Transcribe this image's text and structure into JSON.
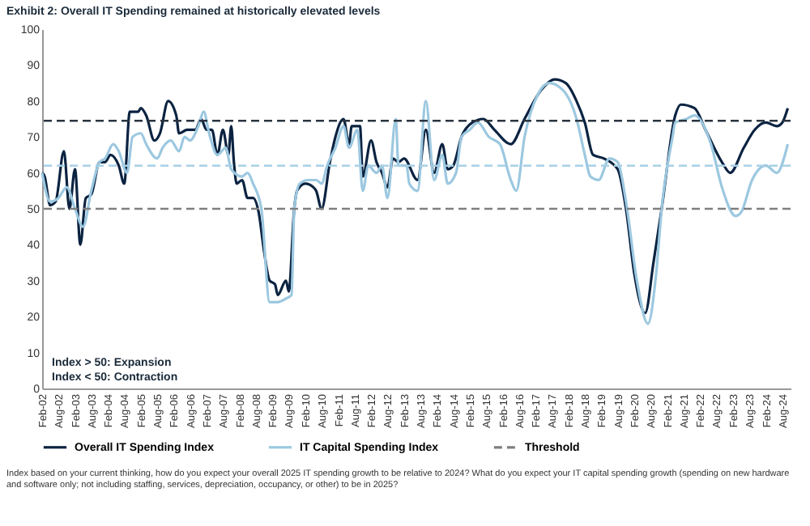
{
  "chart_data": {
    "type": "line",
    "title": "Exhibit 2: Overall IT Spending remained at historically elevated levels",
    "annotations": [
      "Index > 50: Expansion",
      "Index < 50: Contraction",
      "Index based on your current thinking, how do you expect your overall 2025 IT spending growth to be relative to 2024? What do you expect your IT capital spending growth (spending on new hardware and software only; not including staffing, services, depreciation, occupancy, or other) to be in 2025?"
    ],
    "ylim": [
      0,
      100
    ],
    "yticks": [
      0,
      10,
      20,
      30,
      40,
      50,
      60,
      70,
      80,
      90,
      100
    ],
    "xlim": [
      "2002-02",
      "2024-11"
    ],
    "xticks": [
      {
        "value": "2002-02",
        "label": "Feb-02"
      },
      {
        "value": "2002-08",
        "label": "Aug-02"
      },
      {
        "value": "2003-02",
        "label": "Feb-03"
      },
      {
        "value": "2003-08",
        "label": "Aug-03"
      },
      {
        "value": "2004-02",
        "label": "Feb-04"
      },
      {
        "value": "2004-08",
        "label": "Aug-04"
      },
      {
        "value": "2005-02",
        "label": "Feb-05"
      },
      {
        "value": "2005-08",
        "label": "Aug-05"
      },
      {
        "value": "2006-02",
        "label": "Feb-06"
      },
      {
        "value": "2006-08",
        "label": "Aug-06"
      },
      {
        "value": "2007-02",
        "label": "Feb-07"
      },
      {
        "value": "2007-08",
        "label": "Aug-07"
      },
      {
        "value": "2008-02",
        "label": "Feb-08"
      },
      {
        "value": "2008-08",
        "label": "Aug-08"
      },
      {
        "value": "2009-02",
        "label": "Feb-09"
      },
      {
        "value": "2009-08",
        "label": "Aug-09"
      },
      {
        "value": "2010-02",
        "label": "Feb-10"
      },
      {
        "value": "2010-08",
        "label": "Aug-10"
      },
      {
        "value": "2011-02",
        "label": "Feb-11"
      },
      {
        "value": "2011-08",
        "label": "Aug-11"
      },
      {
        "value": "2012-02",
        "label": "Feb-12"
      },
      {
        "value": "2012-08",
        "label": "Aug-12"
      },
      {
        "value": "2013-02",
        "label": "Feb-13"
      },
      {
        "value": "2013-08",
        "label": "Aug-13"
      },
      {
        "value": "2014-02",
        "label": "Feb-14"
      },
      {
        "value": "2014-08",
        "label": "Aug-14"
      },
      {
        "value": "2015-02",
        "label": "Feb-15"
      },
      {
        "value": "2015-08",
        "label": "Aug-15"
      },
      {
        "value": "2016-02",
        "label": "Feb-16"
      },
      {
        "value": "2016-08",
        "label": "Aug-16"
      },
      {
        "value": "2017-02",
        "label": "Feb-17"
      },
      {
        "value": "2017-08",
        "label": "Aug-17"
      },
      {
        "value": "2018-02",
        "label": "Feb-18"
      },
      {
        "value": "2018-08",
        "label": "Aug-18"
      },
      {
        "value": "2019-02",
        "label": "Feb-19"
      },
      {
        "value": "2019-08",
        "label": "Aug-19"
      },
      {
        "value": "2020-02",
        "label": "Feb-20"
      },
      {
        "value": "2020-08",
        "label": "Aug-20"
      },
      {
        "value": "2021-02",
        "label": "Feb-21"
      },
      {
        "value": "2021-08",
        "label": "Aug-21"
      },
      {
        "value": "2022-02",
        "label": "Feb-22"
      },
      {
        "value": "2022-08",
        "label": "Aug-22"
      },
      {
        "value": "2023-02",
        "label": "Feb-23"
      },
      {
        "value": "2023-08",
        "label": "Aug-23"
      },
      {
        "value": "2024-02",
        "label": "Feb-24"
      },
      {
        "value": "2024-08",
        "label": "Aug-24"
      }
    ],
    "grid": false,
    "legend": "bottom",
    "marker": "none",
    "series": [
      {
        "name": "Overall IT Spending Index",
        "color": "#0b2341",
        "x": [
          "2002-02",
          "2002-03",
          "2002-05",
          "2002-07",
          "2002-10",
          "2002-12",
          "2003-02",
          "2003-04",
          "2003-06",
          "2003-08",
          "2003-11",
          "2004-01",
          "2004-03",
          "2004-06",
          "2004-08",
          "2004-10",
          "2005-01",
          "2005-02",
          "2005-04",
          "2005-07",
          "2005-09",
          "2005-12",
          "2006-03",
          "2006-04",
          "2006-07",
          "2006-10",
          "2006-12",
          "2007-02",
          "2007-04",
          "2007-06",
          "2007-08",
          "2007-10",
          "2007-11",
          "2007-12",
          "2008-01",
          "2008-03",
          "2008-05",
          "2008-07",
          "2008-09",
          "2008-11",
          "2009-01",
          "2009-03",
          "2009-04",
          "2009-07",
          "2009-08",
          "2009-10",
          "2009-11",
          "2010-02",
          "2010-05",
          "2010-06",
          "2010-08",
          "2010-11",
          "2011-01",
          "2011-04",
          "2011-06",
          "2011-07",
          "2011-10",
          "2011-11",
          "2012-02",
          "2012-04",
          "2012-06",
          "2012-08",
          "2012-10",
          "2012-12",
          "2013-02",
          "2013-07",
          "2013-10",
          "2014-01",
          "2014-04",
          "2014-06",
          "2014-08",
          "2014-11",
          "2015-03",
          "2015-07",
          "2015-11",
          "2016-05",
          "2016-10",
          "2017-04",
          "2017-09",
          "2018-01",
          "2018-05",
          "2018-08",
          "2018-11",
          "2019-03",
          "2019-08",
          "2019-11",
          "2020-02",
          "2020-06",
          "2020-09",
          "2020-12",
          "2021-05",
          "2021-07",
          "2021-12",
          "2022-04",
          "2022-10",
          "2023-01",
          "2023-06",
          "2023-10",
          "2024-02",
          "2024-06",
          "2024-08",
          "2024-10"
        ],
        "values": [
          60,
          59,
          51,
          52,
          66,
          50,
          61,
          40,
          53,
          54,
          63,
          63,
          65,
          62,
          57,
          77,
          77,
          78,
          76,
          69,
          71,
          80,
          76,
          71,
          72,
          72,
          75,
          72,
          72,
          65,
          72,
          65,
          73,
          63,
          57,
          58,
          53,
          53,
          49,
          38,
          30,
          29,
          26,
          30,
          27,
          50,
          55,
          57,
          56,
          55,
          50,
          63,
          70,
          75,
          68,
          73,
          73,
          59,
          69,
          63,
          60,
          56,
          64,
          63,
          64,
          58,
          72,
          60,
          68,
          61,
          62,
          70,
          74,
          75,
          72,
          68,
          75,
          83,
          86,
          85,
          80,
          74,
          65,
          64,
          61,
          50,
          32,
          21,
          35,
          50,
          76,
          79,
          78,
          72,
          63,
          60,
          67,
          72,
          74,
          73,
          74,
          78
        ]
      },
      {
        "name": "IT Capital Spending Index",
        "color": "#9cc8e0",
        "x": [
          "2002-02",
          "2002-05",
          "2002-08",
          "2002-11",
          "2003-02",
          "2003-05",
          "2003-08",
          "2003-11",
          "2004-01",
          "2004-04",
          "2004-06",
          "2004-09",
          "2004-11",
          "2005-02",
          "2005-04",
          "2005-08",
          "2005-10",
          "2006-01",
          "2006-04",
          "2006-06",
          "2006-08",
          "2006-11",
          "2007-01",
          "2007-03",
          "2007-06",
          "2007-09",
          "2007-11",
          "2008-03",
          "2008-05",
          "2008-07",
          "2008-10",
          "2009-01",
          "2009-04",
          "2009-07",
          "2009-09",
          "2009-10",
          "2009-12",
          "2010-03",
          "2010-06",
          "2010-08",
          "2010-10",
          "2011-01",
          "2011-04",
          "2011-06",
          "2011-09",
          "2011-11",
          "2012-01",
          "2012-04",
          "2012-06",
          "2012-08",
          "2012-11",
          "2012-12",
          "2013-03",
          "2013-04",
          "2013-07",
          "2013-10",
          "2014-01",
          "2014-04",
          "2014-06",
          "2014-09",
          "2014-11",
          "2015-02",
          "2015-05",
          "2015-09",
          "2016-01",
          "2016-05",
          "2016-07",
          "2016-10",
          "2017-03",
          "2017-07",
          "2017-12",
          "2018-05",
          "2018-08",
          "2018-10",
          "2019-01",
          "2019-05",
          "2019-08",
          "2019-11",
          "2020-03",
          "2020-07",
          "2020-10",
          "2020-12",
          "2021-04",
          "2021-05",
          "2021-09",
          "2021-12",
          "2022-06",
          "2022-10",
          "2023-03",
          "2023-05",
          "2023-09",
          "2024-02",
          "2024-06",
          "2024-10"
        ],
        "values": [
          60,
          52,
          53,
          56,
          50,
          45,
          55,
          63,
          64,
          68,
          66,
          60,
          70,
          71,
          68,
          64,
          67,
          69,
          66,
          70,
          69,
          73,
          77,
          71,
          65,
          67,
          61,
          59,
          60,
          57,
          50,
          24,
          24,
          25,
          26,
          50,
          57,
          58,
          58,
          57,
          62,
          67,
          73,
          67,
          72,
          55,
          62,
          60,
          62,
          53,
          75,
          62,
          62,
          57,
          55,
          80,
          58,
          65,
          57,
          60,
          70,
          72,
          74,
          70,
          68,
          58,
          55,
          70,
          82,
          85,
          83,
          75,
          65,
          59,
          58,
          64,
          63,
          52,
          30,
          18,
          32,
          50,
          70,
          74,
          75,
          76,
          68,
          56,
          48,
          49,
          58,
          62,
          60,
          68
        ]
      }
    ],
    "ref_lines": [
      {
        "axis": "y",
        "value": 74.5,
        "color": "#2b3440",
        "line_style": "dashed"
      },
      {
        "axis": "y",
        "value": 62,
        "color": "#a8d0e6",
        "line_style": "dashed"
      },
      {
        "axis": "y",
        "value": 50,
        "label": "Threshold",
        "color": "#7f7f7f",
        "line_style": "dashed"
      }
    ]
  }
}
